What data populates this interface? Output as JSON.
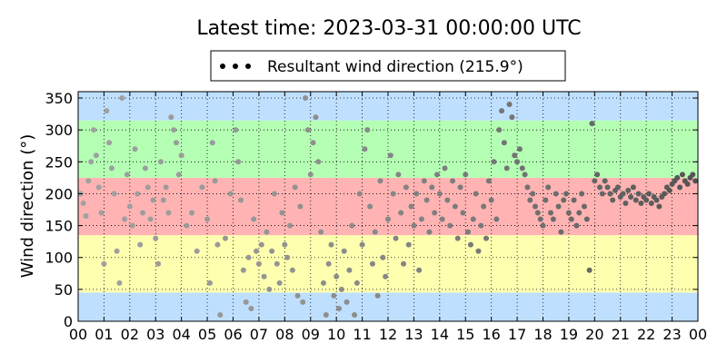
{
  "chart_data": {
    "type": "scatter",
    "title": "Latest time: 2023-03-31 00:00:00 UTC",
    "ylabel": "Wind direction (°)",
    "xlabel": "",
    "xlim": [
      0,
      24
    ],
    "ylim": [
      0,
      360
    ],
    "x_ticks": [
      "00",
      "01",
      "02",
      "03",
      "04",
      "05",
      "06",
      "07",
      "08",
      "09",
      "10",
      "11",
      "12",
      "13",
      "14",
      "15",
      "16",
      "17",
      "18",
      "19",
      "20",
      "21",
      "22",
      "23",
      "00"
    ],
    "y_ticks": [
      0,
      50,
      100,
      150,
      200,
      250,
      300,
      350
    ],
    "grid": true,
    "legend": {
      "label": "Resultant wind direction (215.9°)",
      "placement": "top-center"
    },
    "bands": [
      {
        "from": 0,
        "to": 45,
        "color": "#bfdfff"
      },
      {
        "from": 45,
        "to": 135,
        "color": "#ffffb0"
      },
      {
        "from": 135,
        "to": 225,
        "color": "#ffb3b3"
      },
      {
        "from": 225,
        "to": 315,
        "color": "#b4ffb4"
      },
      {
        "from": 315,
        "to": 360,
        "color": "#bfdfff"
      }
    ],
    "series": [
      {
        "color_old": "#a0a0a0",
        "color_new": "#202020",
        "points": [
          [
            0.1,
            200
          ],
          [
            0.2,
            185
          ],
          [
            0.3,
            165
          ],
          [
            0.4,
            220
          ],
          [
            0.5,
            250
          ],
          [
            0.6,
            300
          ],
          [
            0.7,
            260
          ],
          [
            0.8,
            210
          ],
          [
            0.9,
            170
          ],
          [
            1.0,
            90
          ],
          [
            1.1,
            330
          ],
          [
            1.2,
            280
          ],
          [
            1.3,
            240
          ],
          [
            1.4,
            200
          ],
          [
            1.5,
            110
          ],
          [
            1.6,
            60
          ],
          [
            1.7,
            350
          ],
          [
            1.8,
            160
          ],
          [
            1.9,
            230
          ],
          [
            2.0,
            180
          ],
          [
            2.1,
            150
          ],
          [
            2.2,
            270
          ],
          [
            2.3,
            200
          ],
          [
            2.4,
            120
          ],
          [
            2.5,
            170
          ],
          [
            2.6,
            240
          ],
          [
            2.7,
            210
          ],
          [
            2.8,
            160
          ],
          [
            2.9,
            190
          ],
          [
            3.0,
            130
          ],
          [
            3.1,
            90
          ],
          [
            3.2,
            250
          ],
          [
            3.3,
            190
          ],
          [
            3.4,
            210
          ],
          [
            3.5,
            170
          ],
          [
            3.6,
            320
          ],
          [
            3.7,
            300
          ],
          [
            3.8,
            280
          ],
          [
            3.9,
            230
          ],
          [
            4.0,
            260
          ],
          [
            4.2,
            150
          ],
          [
            4.4,
            170
          ],
          [
            4.6,
            110
          ],
          [
            4.8,
            210
          ],
          [
            5.0,
            160
          ],
          [
            5.1,
            60
          ],
          [
            5.2,
            280
          ],
          [
            5.3,
            220
          ],
          [
            5.4,
            120
          ],
          [
            5.5,
            10
          ],
          [
            5.7,
            130
          ],
          [
            5.9,
            200
          ],
          [
            6.1,
            300
          ],
          [
            6.2,
            250
          ],
          [
            6.3,
            190
          ],
          [
            6.4,
            80
          ],
          [
            6.5,
            30
          ],
          [
            6.6,
            100
          ],
          [
            6.7,
            20
          ],
          [
            6.8,
            160
          ],
          [
            6.9,
            110
          ],
          [
            7.0,
            90
          ],
          [
            7.1,
            120
          ],
          [
            7.2,
            70
          ],
          [
            7.3,
            140
          ],
          [
            7.4,
            50
          ],
          [
            7.5,
            110
          ],
          [
            7.6,
            200
          ],
          [
            7.7,
            90
          ],
          [
            7.8,
            60
          ],
          [
            7.9,
            170
          ],
          [
            8.0,
            120
          ],
          [
            8.1,
            100
          ],
          [
            8.2,
            150
          ],
          [
            8.3,
            80
          ],
          [
            8.4,
            210
          ],
          [
            8.5,
            40
          ],
          [
            8.6,
            180
          ],
          [
            8.7,
            30
          ],
          [
            8.8,
            350
          ],
          [
            8.9,
            300
          ],
          [
            9.0,
            230
          ],
          [
            9.1,
            280
          ],
          [
            9.2,
            320
          ],
          [
            9.3,
            250
          ],
          [
            9.4,
            140
          ],
          [
            9.5,
            60
          ],
          [
            9.6,
            10
          ],
          [
            9.7,
            90
          ],
          [
            9.8,
            120
          ],
          [
            9.9,
            40
          ],
          [
            10.0,
            70
          ],
          [
            10.1,
            20
          ],
          [
            10.2,
            50
          ],
          [
            10.3,
            110
          ],
          [
            10.4,
            30
          ],
          [
            10.5,
            80
          ],
          [
            10.6,
            150
          ],
          [
            10.7,
            10
          ],
          [
            10.8,
            60
          ],
          [
            10.9,
            200
          ],
          [
            11.0,
            120
          ],
          [
            11.1,
            270
          ],
          [
            11.2,
            300
          ],
          [
            11.3,
            180
          ],
          [
            11.4,
            90
          ],
          [
            11.5,
            140
          ],
          [
            11.6,
            40
          ],
          [
            11.7,
            220
          ],
          [
            11.8,
            100
          ],
          [
            11.9,
            70
          ],
          [
            12.0,
            160
          ],
          [
            12.1,
            260
          ],
          [
            12.2,
            200
          ],
          [
            12.3,
            130
          ],
          [
            12.4,
            230
          ],
          [
            12.5,
            170
          ],
          [
            12.6,
            90
          ],
          [
            12.7,
            210
          ],
          [
            12.8,
            120
          ],
          [
            12.9,
            180
          ],
          [
            13.0,
            150
          ],
          [
            13.1,
            200
          ],
          [
            13.2,
            80
          ],
          [
            13.3,
            160
          ],
          [
            13.4,
            220
          ],
          [
            13.5,
            190
          ],
          [
            13.6,
            140
          ],
          [
            13.7,
            210
          ],
          [
            13.8,
            170
          ],
          [
            13.9,
            230
          ],
          [
            14.0,
            200
          ],
          [
            14.1,
            160
          ],
          [
            14.2,
            240
          ],
          [
            14.3,
            190
          ],
          [
            14.4,
            150
          ],
          [
            14.5,
            220
          ],
          [
            14.6,
            180
          ],
          [
            14.7,
            130
          ],
          [
            14.8,
            210
          ],
          [
            14.9,
            170
          ],
          [
            15.0,
            230
          ],
          [
            15.1,
            140
          ],
          [
            15.2,
            120
          ],
          [
            15.3,
            160
          ],
          [
            15.4,
            200
          ],
          [
            15.5,
            110
          ],
          [
            15.6,
            150
          ],
          [
            15.7,
            180
          ],
          [
            15.8,
            130
          ],
          [
            15.9,
            220
          ],
          [
            16.0,
            190
          ],
          [
            16.1,
            250
          ],
          [
            16.2,
            160
          ],
          [
            16.3,
            300
          ],
          [
            16.4,
            330
          ],
          [
            16.5,
            280
          ],
          [
            16.6,
            240
          ],
          [
            16.7,
            340
          ],
          [
            16.8,
            320
          ],
          [
            16.9,
            260
          ],
          [
            17.0,
            250
          ],
          [
            17.1,
            270
          ],
          [
            17.2,
            240
          ],
          [
            17.3,
            230
          ],
          [
            17.4,
            210
          ],
          [
            17.5,
            190
          ],
          [
            17.6,
            200
          ],
          [
            17.7,
            180
          ],
          [
            17.8,
            170
          ],
          [
            17.9,
            160
          ],
          [
            18.0,
            150
          ],
          [
            18.1,
            190
          ],
          [
            18.2,
            210
          ],
          [
            18.3,
            170
          ],
          [
            18.4,
            160
          ],
          [
            18.5,
            200
          ],
          [
            18.6,
            180
          ],
          [
            18.7,
            140
          ],
          [
            18.8,
            190
          ],
          [
            18.9,
            200
          ],
          [
            19.0,
            170
          ],
          [
            19.1,
            160
          ],
          [
            19.2,
            190
          ],
          [
            19.3,
            150
          ],
          [
            19.4,
            170
          ],
          [
            19.5,
            200
          ],
          [
            19.6,
            180
          ],
          [
            19.7,
            160
          ],
          [
            19.8,
            80
          ],
          [
            19.9,
            310
          ],
          [
            20.0,
            220
          ],
          [
            20.1,
            230
          ],
          [
            20.2,
            210
          ],
          [
            20.3,
            200
          ],
          [
            20.4,
            220
          ],
          [
            20.5,
            210
          ],
          [
            20.6,
            200
          ],
          [
            20.7,
            190
          ],
          [
            20.8,
            205
          ],
          [
            20.9,
            210
          ],
          [
            21.0,
            195
          ],
          [
            21.1,
            200
          ],
          [
            21.2,
            185
          ],
          [
            21.3,
            205
          ],
          [
            21.4,
            195
          ],
          [
            21.5,
            210
          ],
          [
            21.6,
            190
          ],
          [
            21.7,
            200
          ],
          [
            21.8,
            185
          ],
          [
            21.9,
            195
          ],
          [
            22.0,
            190
          ],
          [
            22.1,
            200
          ],
          [
            22.2,
            185
          ],
          [
            22.3,
            195
          ],
          [
            22.4,
            190
          ],
          [
            22.5,
            180
          ],
          [
            22.6,
            195
          ],
          [
            22.7,
            200
          ],
          [
            22.8,
            210
          ],
          [
            22.9,
            205
          ],
          [
            23.0,
            215
          ],
          [
            23.1,
            220
          ],
          [
            23.2,
            225
          ],
          [
            23.3,
            210
          ],
          [
            23.4,
            230
          ],
          [
            23.5,
            220
          ],
          [
            23.6,
            215
          ],
          [
            23.7,
            225
          ],
          [
            23.8,
            230
          ],
          [
            23.9,
            220
          ]
        ]
      }
    ]
  }
}
